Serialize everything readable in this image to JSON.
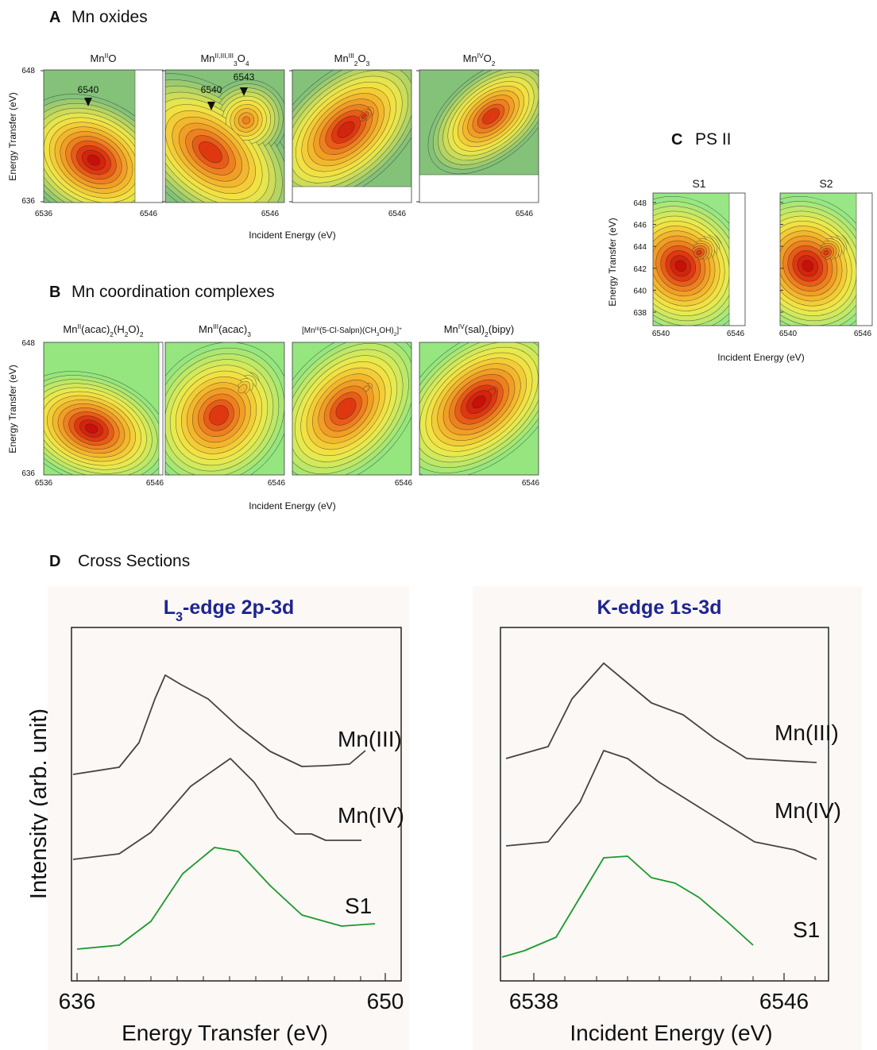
{
  "panel_a": {
    "label": "A",
    "title": "Mn oxides",
    "plots": [
      {
        "title": [
          {
            "t": "Mn"
          },
          {
            "sup": "II"
          },
          {
            "t": "O"
          }
        ]
      },
      {
        "title": [
          {
            "t": "Mn"
          },
          {
            "sup": "II,III,III"
          },
          {
            "sub": "3"
          },
          {
            "t": "O"
          },
          {
            "sub": "4"
          }
        ]
      },
      {
        "title": [
          {
            "t": "Mn"
          },
          {
            "sup": "III"
          },
          {
            "sub": "2"
          },
          {
            "t": "O"
          },
          {
            "sub": "3"
          }
        ]
      },
      {
        "title": [
          {
            "t": "Mn"
          },
          {
            "sup": "IV"
          },
          {
            "t": "O"
          },
          {
            "sub": "2"
          }
        ]
      }
    ],
    "annotations": [
      "6540",
      "6540",
      "6543"
    ],
    "x_ticks": [
      "6536",
      "6546"
    ],
    "y_ticks": [
      "648",
      "636"
    ],
    "x_label": "Incident Energy (eV)",
    "y_label": "Energy Transfer (eV)"
  },
  "panel_b": {
    "label": "B",
    "title": "Mn coordination complexes",
    "plots": [
      {
        "title": [
          {
            "t": "Mn"
          },
          {
            "sup": "II"
          },
          {
            "t": "(acac)"
          },
          {
            "sub": "2"
          },
          {
            "t": "(H"
          },
          {
            "sub": "2"
          },
          {
            "t": "O)"
          },
          {
            "sub": "2"
          }
        ]
      },
      {
        "title": [
          {
            "t": "Mn"
          },
          {
            "sup": "III"
          },
          {
            "t": "(acac)"
          },
          {
            "sub": "3"
          }
        ]
      },
      {
        "title": [
          {
            "t": "[Mn"
          },
          {
            "sup": "III"
          },
          {
            "t": "(5-Cl-Salpn)(CH"
          },
          {
            "sub": "3"
          },
          {
            "t": "OH)"
          },
          {
            "sub": "2"
          },
          {
            "t": "]"
          },
          {
            "sup": "+"
          }
        ]
      },
      {
        "title": [
          {
            "t": "Mn"
          },
          {
            "sup": "IV"
          },
          {
            "t": "(sal)"
          },
          {
            "sub": "2"
          },
          {
            "t": "(bipy)"
          }
        ]
      }
    ],
    "x_ticks": [
      "6536",
      "6546"
    ],
    "y_ticks": [
      "648",
      "636"
    ],
    "x_label": "Incident Energy (eV)",
    "y_label": "Energy Transfer (eV)"
  },
  "panel_c": {
    "label": "C",
    "title": "PS II",
    "plots": [
      {
        "title": "S1"
      },
      {
        "title": "S2"
      }
    ],
    "x_ticks": [
      "6540",
      "6546"
    ],
    "y_ticks": [
      "648",
      "646",
      "644",
      "642",
      "640",
      "638"
    ],
    "x_label": "Incident Energy (eV)",
    "y_label": "Energy Transfer (eV)"
  },
  "panel_d": {
    "label": "D",
    "title": "Cross Sections",
    "y_label": "Intensity (arb. unit)",
    "plots": [
      {
        "title": [
          {
            "t": "L"
          },
          {
            "sub": "3"
          },
          {
            "t": "-edge 2p-3d"
          }
        ],
        "x_ticks": [
          "636",
          "650"
        ],
        "x_label": "Energy Transfer (eV)",
        "curves": [
          "Mn(III)",
          "Mn(IV)",
          "S1"
        ]
      },
      {
        "title": [
          {
            "t": "K-edge 1s-3d"
          }
        ],
        "x_ticks": [
          "6538",
          "6546"
        ],
        "x_label": "Incident Energy (eV)",
        "curves": [
          "Mn(III)",
          "Mn(IV)",
          "S1"
        ]
      }
    ]
  }
}
